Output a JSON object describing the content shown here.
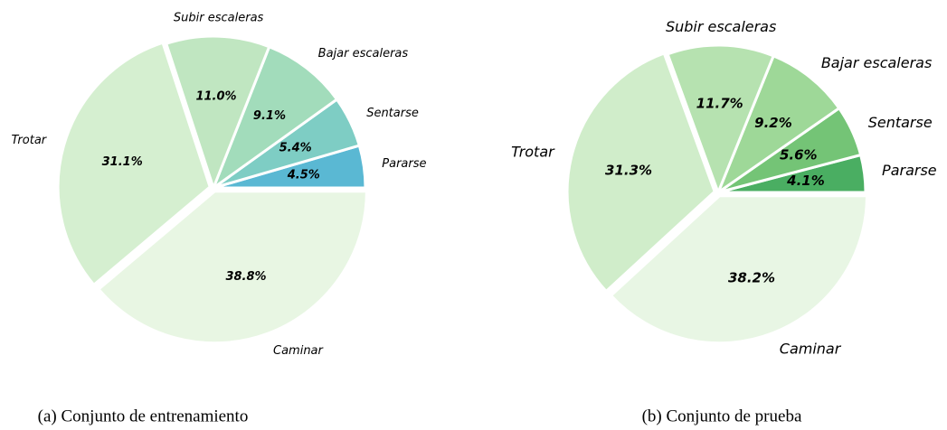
{
  "chart_data": [
    {
      "type": "pie",
      "caption": "(a) Conjunto de entrenamiento",
      "categories": [
        "Pararse",
        "Sentarse",
        "Bajar escaleras",
        "Subir escaleras",
        "Trotar",
        "Caminar"
      ],
      "values": [
        4.5,
        5.4,
        9.1,
        11.0,
        31.1,
        38.8
      ],
      "value_labels": [
        "4.5%",
        "5.4%",
        "9.1%",
        "11.0%",
        "31.1%",
        "38.8%"
      ],
      "colors": [
        "#5ab8d3",
        "#7ecdc4",
        "#a2dcbb",
        "#c0e6c1",
        "#d5efd0",
        "#e8f6e3"
      ]
    },
    {
      "type": "pie",
      "caption": "(b) Conjunto de prueba",
      "categories": [
        "Pararse",
        "Sentarse",
        "Bajar escaleras",
        "Subir escaleras",
        "Trotar",
        "Caminar"
      ],
      "values": [
        4.1,
        5.6,
        9.2,
        11.7,
        31.3,
        38.2
      ],
      "value_labels": [
        "4.1%",
        "5.6%",
        "9.2%",
        "11.7%",
        "31.3%",
        "38.2%"
      ],
      "colors": [
        "#4aae62",
        "#74c476",
        "#9ed898",
        "#b6e2b0",
        "#d0edca",
        "#e8f6e4"
      ]
    }
  ]
}
